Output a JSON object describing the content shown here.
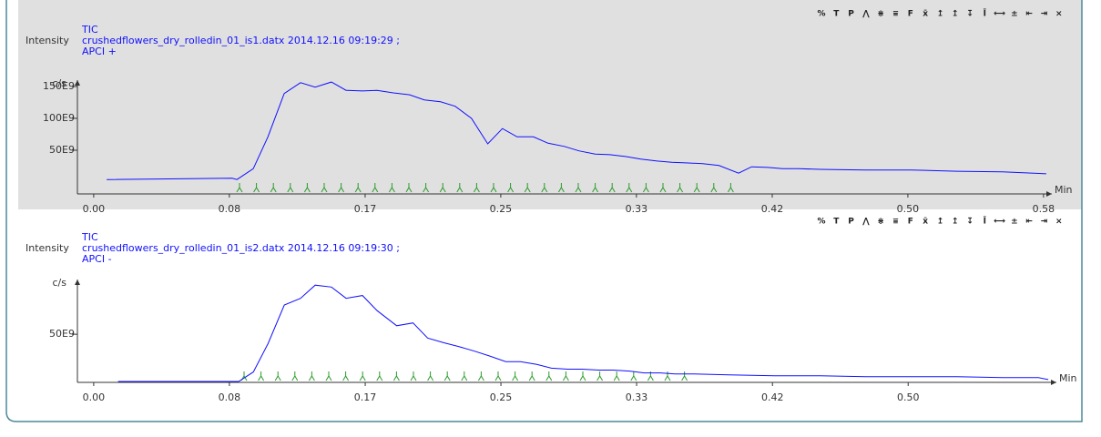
{
  "toolbar": [
    "%",
    "T",
    "P",
    "⋀",
    "⋇",
    "⩸",
    "F",
    "x̄",
    "↥",
    "↥",
    "↧",
    "Ī",
    "⟷",
    "±",
    "⇤",
    "⇥",
    "×"
  ],
  "chart_data": [
    {
      "type": "line",
      "y_label": "Intensity",
      "y_unit": "c/s",
      "x_label": "Min",
      "title": "crushedflowers_dry_rolledin_01_is1.datx 2014.12.16 09:19:29 ;",
      "subtitle": "APCI +",
      "xlim": [
        -0.01,
        0.5884
      ],
      "ylim": [
        -18600000000.0,
        160000000000.0
      ],
      "xticks": [
        {
          "value": 0,
          "label": "0.00"
        },
        {
          "value": 0.0833,
          "label": "0.08"
        },
        {
          "value": 0.1667,
          "label": "0.17"
        },
        {
          "value": 0.25,
          "label": "0.25"
        },
        {
          "value": 0.3333,
          "label": "0.33"
        },
        {
          "value": 0.4167,
          "label": "0.42"
        },
        {
          "value": 0.5,
          "label": "0.50"
        },
        {
          "value": 0.5833,
          "label": "0.58"
        }
      ],
      "yticks": [
        {
          "value": 50000000000.0,
          "label": "50E9"
        },
        {
          "value": 100000000000.0,
          "label": "100E9"
        },
        {
          "value": 150000000000.0,
          "label": "150E9"
        }
      ],
      "x": [
        0.008,
        0.085,
        0.088,
        0.098,
        0.107,
        0.117,
        0.127,
        0.136,
        0.146,
        0.155,
        0.165,
        0.174,
        0.184,
        0.194,
        0.203,
        0.213,
        0.222,
        0.232,
        0.242,
        0.251,
        0.26,
        0.27,
        0.279,
        0.289,
        0.298,
        0.308,
        0.317,
        0.327,
        0.336,
        0.346,
        0.355,
        0.365,
        0.374,
        0.384,
        0.396,
        0.404,
        0.414,
        0.423,
        0.433,
        0.446,
        0.474,
        0.502,
        0.53,
        0.558,
        0.585
      ],
      "series": [
        {
          "name": "TIC",
          "color": "#1010ff",
          "values": [
            4000000000.0,
            6000000000.0,
            4000000000.0,
            21000000000.0,
            71000000000.0,
            139000000000.0,
            156000000000.0,
            149000000000.0,
            157000000000.0,
            144000000000.0,
            143000000000.0,
            144000000000.0,
            140000000000.0,
            137000000000.0,
            129000000000.0,
            126000000000.0,
            119000000000.0,
            100000000000.0,
            60000000000.0,
            84000000000.0,
            71000000000.0,
            71000000000.0,
            61000000000.0,
            56000000000.0,
            49000000000.0,
            44000000000.0,
            43000000000.0,
            40000000000.0,
            36000000000.0,
            33000000000.0,
            31000000000.0,
            30000000000.0,
            29000000000.0,
            26000000000.0,
            14000000000.0,
            24000000000.0,
            23000000000.0,
            21000000000.0,
            21000000000.0,
            20000000000.0,
            19000000000.0,
            19000000000.0,
            17000000000.0,
            16000000000.0,
            13000000000.0
          ]
        }
      ]
    },
    {
      "type": "line",
      "y_label": "Intensity",
      "y_unit": "c/s",
      "x_label": "Min",
      "title": "crushedflowers_dry_rolledin_01_is2.datx 2014.12.16 09:19:30 ;",
      "subtitle": "APCI -",
      "xlim": [
        -0.01,
        0.591
      ],
      "ylim": [
        -1000000000.0,
        108000000000.0
      ],
      "xticks": [
        {
          "value": 0,
          "label": "0.00"
        },
        {
          "value": 0.0833,
          "label": "0.08"
        },
        {
          "value": 0.1667,
          "label": "0.17"
        },
        {
          "value": 0.25,
          "label": "0.25"
        },
        {
          "value": 0.3333,
          "label": "0.33"
        },
        {
          "value": 0.4167,
          "label": "0.42"
        },
        {
          "value": 0.5,
          "label": "0.50"
        }
      ],
      "yticks": [
        {
          "value": 50000000000.0,
          "label": "50E9"
        }
      ],
      "x": [
        0.015,
        0.089,
        0.098,
        0.107,
        0.117,
        0.127,
        0.136,
        0.146,
        0.155,
        0.165,
        0.174,
        0.186,
        0.196,
        0.205,
        0.215,
        0.224,
        0.234,
        0.243,
        0.253,
        0.262,
        0.272,
        0.281,
        0.291,
        0.3,
        0.31,
        0.319,
        0.329,
        0.338,
        0.348,
        0.357,
        0.367,
        0.39,
        0.418,
        0.446,
        0.474,
        0.502,
        0.53,
        0.558,
        0.58,
        0.586
      ],
      "series": [
        {
          "name": "TIC",
          "color": "#1010ff",
          "values": [
            0,
            0,
            10000000000.0,
            40000000000.0,
            81000000000.0,
            88000000000.0,
            102000000000.0,
            100000000000.0,
            88000000000.0,
            91000000000.0,
            75000000000.0,
            59000000000.0,
            62000000000.0,
            46000000000.0,
            41000000000.0,
            37000000000.0,
            32000000000.0,
            27000000000.0,
            21000000000.0,
            21000000000.0,
            18000000000.0,
            14000000000.0,
            13000000000.0,
            13000000000.0,
            12000000000.0,
            12000000000.0,
            11000000000.0,
            9000000000.0,
            9000000000.0,
            8000000000.0,
            8000000000.0,
            7000000000.0,
            6000000000.0,
            6000000000.0,
            5000000000.0,
            5000000000.0,
            5000000000.0,
            4000000000.0,
            4000000000.0,
            2000000000.0
          ]
        }
      ]
    }
  ]
}
